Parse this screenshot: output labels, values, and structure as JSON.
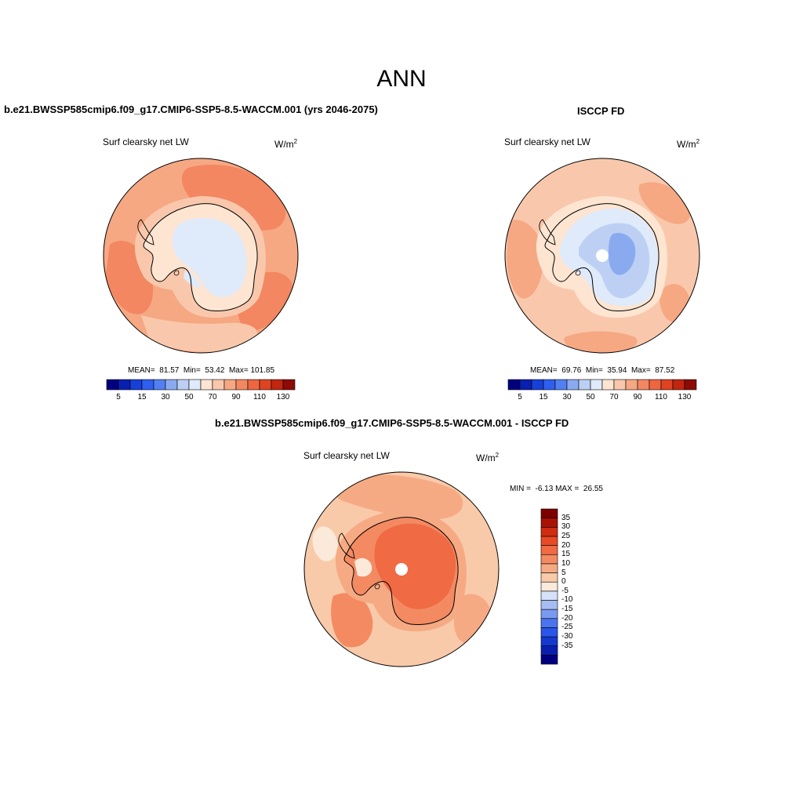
{
  "main_title": "ANN",
  "panels": [
    {
      "title": "b.e21.BWSSP585cmip6.f09_g17.CMIP6-SSP5-8.5-WACCM.001 (yrs 2046-2075)",
      "variable": "Surf clearsky net LW",
      "units_base": "W/m",
      "units_exp": "2",
      "stats": "MEAN=  81.57  Min=  53.42  Max= 101.85"
    },
    {
      "title": "ISCCP FD",
      "variable": "Surf clearsky net LW",
      "units_base": "W/m",
      "units_exp": "2",
      "stats": "MEAN=  69.76  Min=  35.94  Max=  87.52"
    },
    {
      "title": "b.e21.BWSSP585cmip6.f09_g17.CMIP6-SSP5-8.5-WACCM.001 - ISCCP FD",
      "variable": "Surf clearsky net LW",
      "units_base": "W/m",
      "units_exp": "2",
      "stats": "MIN =  -6.13 MAX =  26.55"
    }
  ],
  "colorbar_abs": {
    "colors": [
      "#00007f",
      "#0a1fb0",
      "#1740d8",
      "#2e5fef",
      "#5280f2",
      "#8aaaf0",
      "#bdd0f4",
      "#dfeafa",
      "#fde5d2",
      "#f9c8ac",
      "#f6a883",
      "#f38761",
      "#ee6640",
      "#df4321",
      "#c2260e",
      "#8e0a04"
    ],
    "tick_labels": [
      "5",
      "15",
      "30",
      "50",
      "70",
      "90",
      "110",
      "130"
    ]
  },
  "colorbar_diff": {
    "colors": [
      "#00007f",
      "#0a1fb0",
      "#1538cf",
      "#2a55ea",
      "#4a74f0",
      "#7a99f0",
      "#a6bdf3",
      "#d6e2f8",
      "#fbe9da",
      "#f9caa9",
      "#f6aa84",
      "#f38a62",
      "#f06a44",
      "#e84a25",
      "#cf2c10",
      "#a81205",
      "#7f0000"
    ],
    "tick_labels": [
      "35",
      "30",
      "25",
      "20",
      "15",
      "10",
      "5",
      "0",
      "-5",
      "-10",
      "-15",
      "-20",
      "-25",
      "-30",
      "-35"
    ]
  },
  "map_colors": {
    "ocean_mid": "#f6a883",
    "ocean_high": "#f38761",
    "ocean_low": "#f9c8ac",
    "ice_light": "#fde5d2",
    "ice_blue": "#dfeafa",
    "ice_blue2": "#bdd0f4",
    "ice_blue3": "#8aaaf0",
    "diff_base": "#f9caa9",
    "diff_mid": "#f6aa84",
    "diff_high": "#f38a62",
    "diff_top": "#f06a44",
    "diff_low": "#fbe9da"
  }
}
